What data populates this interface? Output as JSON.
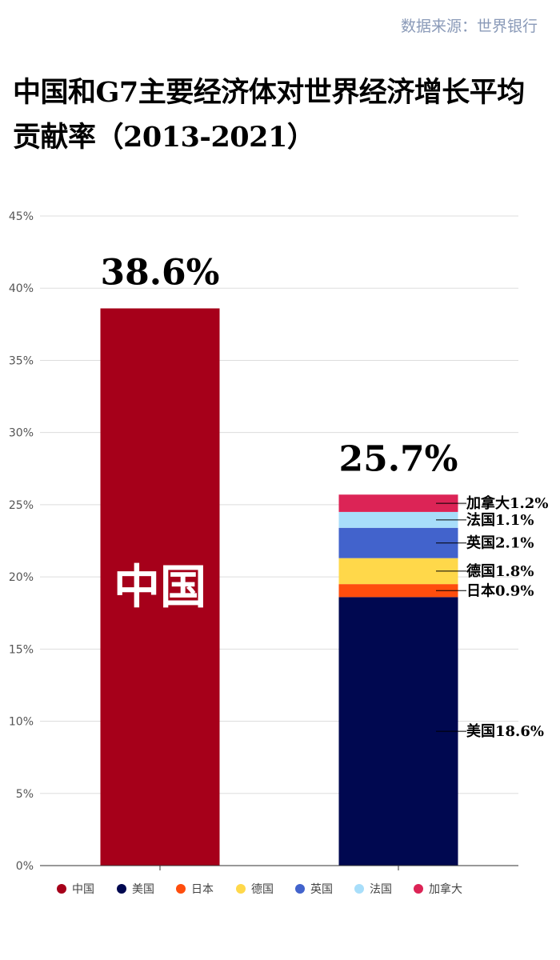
{
  "source": "数据来源：世界银行",
  "title": "中国和G7主要经济体对世界经济增长平均贡献率（2013-2021）",
  "colors": {
    "中国": "#a6001a",
    "美国": "#000850",
    "日本": "#ff4d0d",
    "德国": "#ffd84a",
    "英国": "#4263cc",
    "法国": "#a8defa",
    "加拿大": "#dc2456"
  },
  "chart_data": {
    "type": "bar",
    "stacked": true,
    "ylim": [
      0,
      45
    ],
    "yticks": [
      "0%",
      "5%",
      "10%",
      "15%",
      "20%",
      "25%",
      "30%",
      "35%",
      "40%",
      "45%"
    ],
    "ytick_values": [
      0,
      5,
      10,
      15,
      20,
      25,
      30,
      35,
      40,
      45
    ],
    "grid": true,
    "legend_position": "bottom",
    "legend": [
      "中国",
      "美国",
      "日本",
      "德国",
      "英国",
      "法国",
      "加拿大"
    ],
    "bars": [
      {
        "total_label": "38.6%",
        "inner_label": "中国",
        "segments": [
          {
            "name": "中国",
            "value": 38.6
          }
        ]
      },
      {
        "total_label": "25.7%",
        "segments": [
          {
            "name": "美国",
            "value": 18.6,
            "label": "美国18.6%"
          },
          {
            "name": "日本",
            "value": 0.9,
            "label": "日本0.9%"
          },
          {
            "name": "德国",
            "value": 1.8,
            "label": "德国1.8%"
          },
          {
            "name": "英国",
            "value": 2.1,
            "label": "英国2.1%"
          },
          {
            "name": "法国",
            "value": 1.1,
            "label": "法国1.1%"
          },
          {
            "name": "加拿大",
            "value": 1.2,
            "label": "加拿大1.2%"
          }
        ]
      }
    ]
  }
}
